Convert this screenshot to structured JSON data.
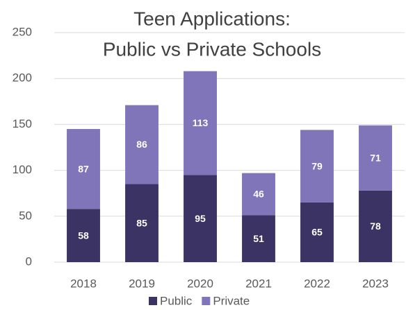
{
  "chart_data": {
    "type": "stacked_bar",
    "title": [
      "Teen Applications:",
      "Public vs Private Schools"
    ],
    "categories": [
      "2018",
      "2019",
      "2020",
      "2021",
      "2022",
      "2023"
    ],
    "series": [
      {
        "name": "Public",
        "color": "#3b3363",
        "values": [
          58,
          85,
          95,
          51,
          65,
          78
        ]
      },
      {
        "name": "Private",
        "color": "#8075b8",
        "values": [
          87,
          86,
          113,
          46,
          79,
          71
        ]
      }
    ],
    "ylim": [
      0,
      250
    ],
    "yticks": [
      0,
      50,
      100,
      150,
      200,
      250
    ],
    "grid": true,
    "legend": "bottom"
  }
}
